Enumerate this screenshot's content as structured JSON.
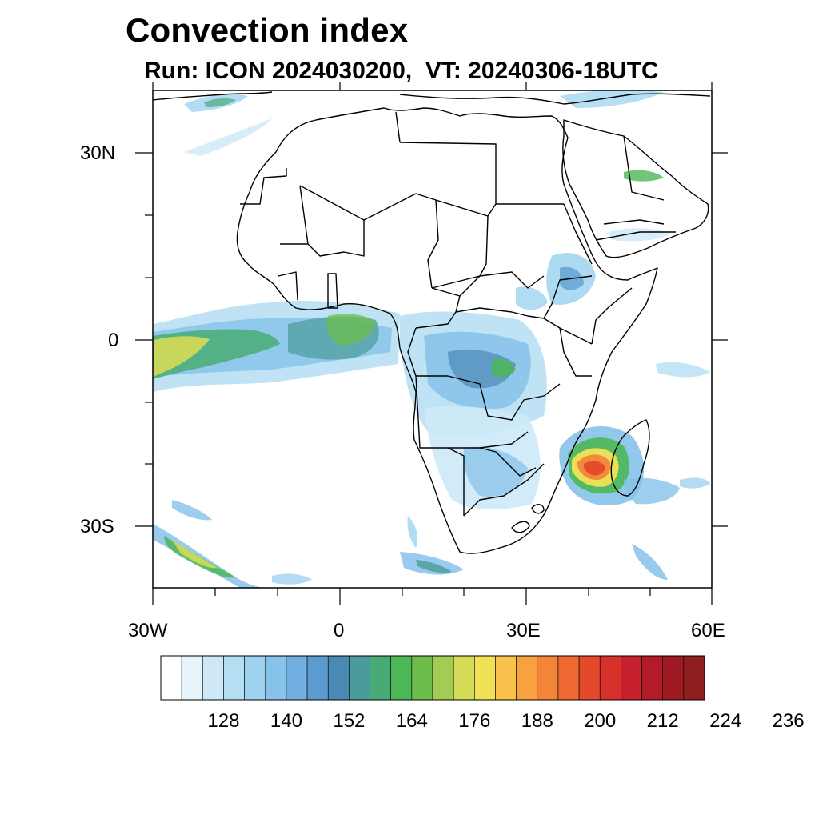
{
  "title": "Convection index",
  "subtitle": "Run: ICON 2024030200,  VT: 20240306-18UTC",
  "map": {
    "lon_range": [
      -30,
      60
    ],
    "lat_range": [
      -40,
      40
    ],
    "lat_labels": [
      "30N",
      "0",
      "30S"
    ],
    "lon_labels": [
      "30W",
      "0",
      "30E",
      "60E"
    ]
  },
  "colorbar": {
    "colors": [
      "#ffffff",
      "#e6f4fb",
      "#cde9f7",
      "#b4def2",
      "#9dd3f1",
      "#86c2ea",
      "#72afe0",
      "#5c9bd0",
      "#4a89b4",
      "#4a9b9a",
      "#48ab76",
      "#4cb757",
      "#6cbd4c",
      "#a4cc54",
      "#d5dc58",
      "#f1e156",
      "#fac24d",
      "#f7a13f",
      "#f3853a",
      "#ee6a32",
      "#e4492b",
      "#d8302b",
      "#c6212c",
      "#b31a2a",
      "#a01a24",
      "#8e1e20"
    ],
    "labels": [
      "128",
      "140",
      "152",
      "164",
      "176",
      "188",
      "200",
      "212",
      "224",
      "236"
    ]
  }
}
